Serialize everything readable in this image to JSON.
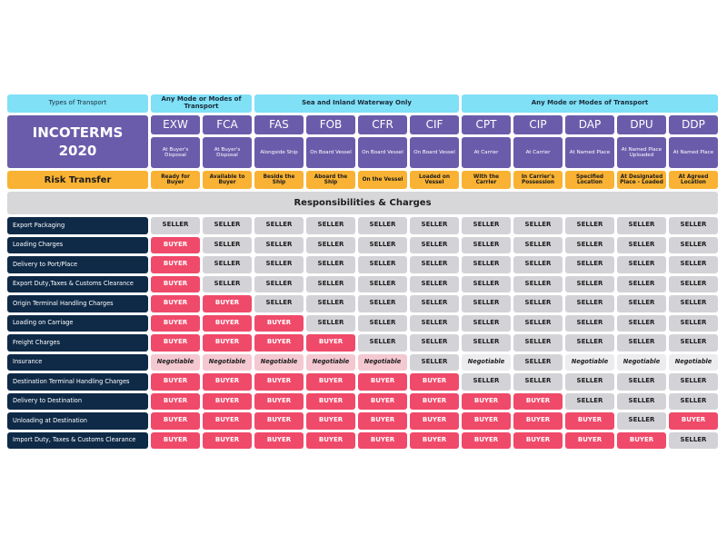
{
  "header": {
    "types_of_transport": "Types of Transport",
    "groups": [
      {
        "label": "Any Mode or Modes of Transport",
        "span": 2
      },
      {
        "label": "Sea and Inland Waterway Only",
        "span": 4
      },
      {
        "label": "Any Mode or Modes of Transport",
        "span": 5
      }
    ],
    "title_line1": "INCOTERMS",
    "title_line2": "2020",
    "risk_transfer": "Risk Transfer",
    "responsibilities": "Responsibilities & Charges"
  },
  "terms": [
    {
      "code": "EXW",
      "desc": "At Buyer's Disposal",
      "risk": "Ready for Buyer"
    },
    {
      "code": "FCA",
      "desc": "At Buyer's Disposal",
      "risk": "Available to Buyer"
    },
    {
      "code": "FAS",
      "desc": "Alongside Ship",
      "risk": "Beside the Ship"
    },
    {
      "code": "FOB",
      "desc": "On Board Vessel",
      "risk": "Aboard the Ship"
    },
    {
      "code": "CFR",
      "desc": "On Board Vessel",
      "risk": "On the Vessel"
    },
    {
      "code": "CIF",
      "desc": "On Board Vessel",
      "risk": "Loaded on Vessel"
    },
    {
      "code": "CPT",
      "desc": "At Carrier",
      "risk": "With the Carrier"
    },
    {
      "code": "CIP",
      "desc": "At Carrier",
      "risk": "In Carrier's Possession"
    },
    {
      "code": "DAP",
      "desc": "At Named Place",
      "risk": "Specified Location"
    },
    {
      "code": "DPU",
      "desc": "At Named Place Uploaded",
      "risk": "At Designated Place - Loaded"
    },
    {
      "code": "DDP",
      "desc": "At Named Place",
      "risk": "At Agreed Location"
    }
  ],
  "rows": [
    {
      "label": "Export Packaging",
      "cells": [
        "SELLER",
        "SELLER",
        "SELLER",
        "SELLER",
        "SELLER",
        "SELLER",
        "SELLER",
        "SELLER",
        "SELLER",
        "SELLER",
        "SELLER"
      ]
    },
    {
      "label": "Loading Charges",
      "cells": [
        "BUYER",
        "SELLER",
        "SELLER",
        "SELLER",
        "SELLER",
        "SELLER",
        "SELLER",
        "SELLER",
        "SELLER",
        "SELLER",
        "SELLER"
      ]
    },
    {
      "label": "Delivery to Port/Place",
      "cells": [
        "BUYER",
        "SELLER",
        "SELLER",
        "SELLER",
        "SELLER",
        "SELLER",
        "SELLER",
        "SELLER",
        "SELLER",
        "SELLER",
        "SELLER"
      ]
    },
    {
      "label": "Export Duty,Taxes & Customs Clearance",
      "cells": [
        "BUYER",
        "SELLER",
        "SELLER",
        "SELLER",
        "SELLER",
        "SELLER",
        "SELLER",
        "SELLER",
        "SELLER",
        "SELLER",
        "SELLER"
      ]
    },
    {
      "label": "Origin Terminal Handling Charges",
      "cells": [
        "BUYER",
        "BUYER",
        "SELLER",
        "SELLER",
        "SELLER",
        "SELLER",
        "SELLER",
        "SELLER",
        "SELLER",
        "SELLER",
        "SELLER"
      ]
    },
    {
      "label": "Loading on Carriage",
      "cells": [
        "BUYER",
        "BUYER",
        "BUYER",
        "SELLER",
        "SELLER",
        "SELLER",
        "SELLER",
        "SELLER",
        "SELLER",
        "SELLER",
        "SELLER"
      ]
    },
    {
      "label": "Freight Charges",
      "cells": [
        "BUYER",
        "BUYER",
        "BUYER",
        "BUYER",
        "SELLER",
        "SELLER",
        "SELLER",
        "SELLER",
        "SELLER",
        "SELLER",
        "SELLER"
      ]
    },
    {
      "label": "Insurance",
      "cells": [
        "Negotiable",
        "Negotiable",
        "Negotiable",
        "Negotiable",
        "Negotiable",
        "SELLER",
        "Negotiable",
        "SELLER",
        "Negotiable",
        "Negotiable",
        "Negotiable"
      ]
    },
    {
      "label": "Destination Terminal Handling Charges",
      "cells": [
        "BUYER",
        "BUYER",
        "BUYER",
        "BUYER",
        "BUYER",
        "BUYER",
        "SELLER",
        "SELLER",
        "SELLER",
        "SELLER",
        "SELLER"
      ]
    },
    {
      "label": "Delivery to Destination",
      "cells": [
        "BUYER",
        "BUYER",
        "BUYER",
        "BUYER",
        "BUYER",
        "BUYER",
        "BUYER",
        "BUYER",
        "SELLER",
        "SELLER",
        "SELLER"
      ]
    },
    {
      "label": "Unloading at Destination",
      "cells": [
        "BUYER",
        "BUYER",
        "BUYER",
        "BUYER",
        "BUYER",
        "BUYER",
        "BUYER",
        "BUYER",
        "BUYER",
        "SELLER",
        "BUYER"
      ]
    },
    {
      "label": "Import Duty, Taxes & Customs Clearance",
      "cells": [
        "BUYER",
        "BUYER",
        "BUYER",
        "BUYER",
        "BUYER",
        "BUYER",
        "BUYER",
        "BUYER",
        "BUYER",
        "BUYER",
        "SELLER"
      ]
    }
  ],
  "colors": {
    "cyan": "#7fe0f6",
    "purple": "#6b5cab",
    "orange": "#f9b233",
    "navy": "#0f2a47",
    "buyer": "#f04a6a",
    "seller": "#d3d3d7",
    "negotiable": "#f4c8d1"
  }
}
